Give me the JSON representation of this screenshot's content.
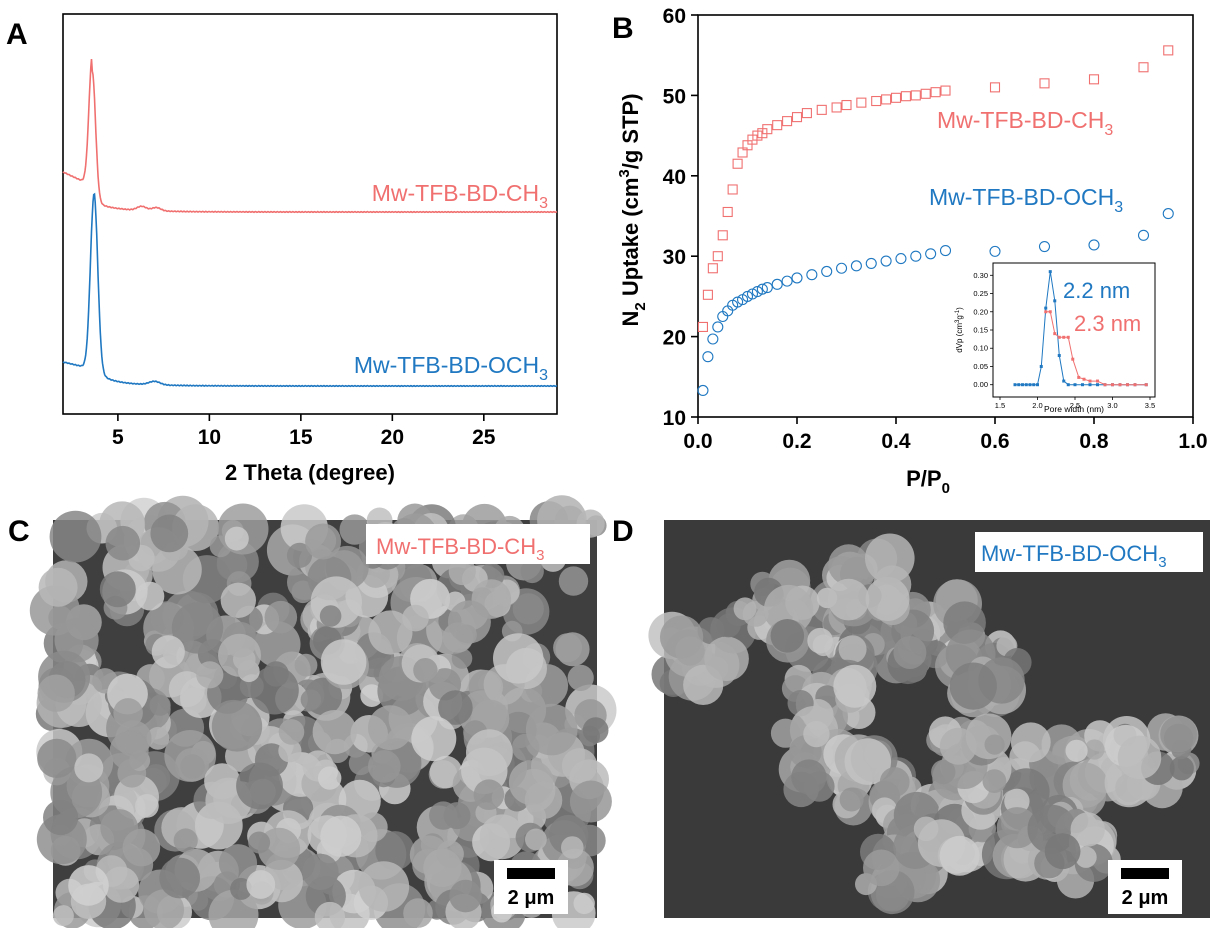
{
  "panels": {
    "A": "A",
    "B": "B",
    "C": "C",
    "D": "D"
  },
  "colors": {
    "ch3": "#f07070",
    "och3": "#1f78c1"
  },
  "sem": {
    "c_label": "Mw-TFB-BD-CH",
    "c_label_sub": "3",
    "d_label": "Mw-TFB-BD-OCH",
    "d_label_sub": "3",
    "scalebar": "2 μm"
  },
  "chart_data": [
    {
      "id": "xrd",
      "type": "line",
      "xlabel": "2 Theta (degree)",
      "xlim": [
        2,
        29
      ],
      "xticks": [
        5,
        10,
        15,
        20,
        25
      ],
      "yticks_shown": false,
      "series": [
        {
          "name": "Mw-TFB-BD-CH3",
          "label_main": "Mw-TFB-BD-CH",
          "label_sub": "3",
          "color": "#f07070",
          "peaks": [
            {
              "x": 3.6,
              "height": 0.95,
              "width": 0.18
            },
            {
              "x": 6.3,
              "height": 0.03,
              "width": 0.25
            },
            {
              "x": 7.1,
              "height": 0.025,
              "width": 0.25
            }
          ]
        },
        {
          "name": "Mw-TFB-BD-OCH3",
          "label_main": "Mw-TFB-BD-OCH",
          "label_sub": "3",
          "color": "#1f78c1",
          "peaks": [
            {
              "x": 3.7,
              "height": 1.0,
              "width": 0.2
            },
            {
              "x": 7.0,
              "height": 0.02,
              "width": 0.3
            }
          ]
        }
      ]
    },
    {
      "id": "bet",
      "type": "scatter",
      "xlabel_main": "P/P",
      "xlabel_sub": "0",
      "ylabel_n": "N",
      "ylabel_n_sub": "2",
      "ylabel_main": " Uptake (cm",
      "ylabel_sup": "3",
      "ylabel_end": "/g STP)",
      "xlim": [
        0,
        1.0
      ],
      "ylim": [
        10,
        60
      ],
      "xticks": [
        0.0,
        0.2,
        0.4,
        0.6,
        0.8,
        1.0
      ],
      "yticks": [
        10,
        20,
        30,
        40,
        50,
        60
      ],
      "series": [
        {
          "name": "Mw-TFB-BD-CH3",
          "label_main": "Mw-TFB-BD-CH",
          "label_sub": "3",
          "marker": "square",
          "color": "#f07070",
          "x": [
            0.01,
            0.02,
            0.03,
            0.04,
            0.05,
            0.06,
            0.07,
            0.08,
            0.09,
            0.1,
            0.11,
            0.12,
            0.13,
            0.14,
            0.16,
            0.18,
            0.2,
            0.22,
            0.25,
            0.28,
            0.3,
            0.33,
            0.36,
            0.38,
            0.4,
            0.42,
            0.44,
            0.46,
            0.48,
            0.5,
            0.6,
            0.7,
            0.8,
            0.9,
            0.95
          ],
          "y": [
            21.2,
            25.2,
            28.5,
            30,
            32.6,
            35.5,
            38.3,
            41.5,
            42.9,
            43.8,
            44.5,
            45,
            45.3,
            45.8,
            46.3,
            46.8,
            47.3,
            47.8,
            48.2,
            48.5,
            48.8,
            49.1,
            49.3,
            49.5,
            49.7,
            49.9,
            50,
            50.2,
            50.4,
            50.6,
            51,
            51.5,
            52,
            53.5,
            55.6
          ]
        },
        {
          "name": "Mw-TFB-BD-OCH3",
          "label_main": "Mw-TFB-BD-OCH",
          "label_sub": "3",
          "marker": "circle",
          "color": "#1f78c1",
          "x": [
            0.01,
            0.02,
            0.03,
            0.04,
            0.05,
            0.06,
            0.07,
            0.08,
            0.09,
            0.1,
            0.11,
            0.12,
            0.13,
            0.14,
            0.16,
            0.18,
            0.2,
            0.23,
            0.26,
            0.29,
            0.32,
            0.35,
            0.38,
            0.41,
            0.44,
            0.47,
            0.5,
            0.6,
            0.7,
            0.8,
            0.9,
            0.95
          ],
          "y": [
            13.3,
            17.5,
            19.7,
            21.2,
            22.5,
            23.2,
            23.9,
            24.3,
            24.6,
            25,
            25.3,
            25.6,
            25.9,
            26.1,
            26.5,
            26.9,
            27.3,
            27.7,
            28.1,
            28.5,
            28.8,
            29.1,
            29.4,
            29.7,
            30,
            30.3,
            30.7,
            30.6,
            31.2,
            31.4,
            32.6,
            35.3
          ]
        }
      ]
    },
    {
      "id": "pore_inset",
      "type": "line",
      "xlabel": "Pore width (nm)",
      "ylabel_main": "dVp (cm",
      "ylabel_sup1": "3",
      "ylabel_mid": "g",
      "ylabel_sup2": "-1",
      "ylabel_end": ")",
      "xlim": [
        1.5,
        3.5
      ],
      "ylim": [
        -0.02,
        0.32
      ],
      "xticks": [
        1.5,
        2.0,
        2.5,
        3.0,
        3.5
      ],
      "yticks": [
        0.0,
        0.05,
        0.1,
        0.15,
        0.2,
        0.25,
        0.3
      ],
      "series": [
        {
          "name": "2.2 nm",
          "color": "#1f78c1",
          "x": [
            1.7,
            1.75,
            1.8,
            1.85,
            1.9,
            1.95,
            2.0,
            2.05,
            2.11,
            2.17,
            2.23,
            2.29,
            2.35,
            2.41,
            2.5,
            2.6,
            2.7,
            2.8,
            2.9,
            3.0,
            3.1,
            3.2,
            3.3,
            3.45
          ],
          "y": [
            0,
            0,
            0,
            0,
            0,
            0,
            0,
            0.05,
            0.21,
            0.31,
            0.23,
            0.08,
            0.01,
            0,
            0,
            0,
            0,
            0,
            0,
            0,
            0,
            0,
            0,
            0
          ]
        },
        {
          "name": "2.3 nm",
          "color": "#f07070",
          "x": [
            2.11,
            2.17,
            2.23,
            2.29,
            2.35,
            2.41,
            2.47,
            2.55,
            2.62,
            2.7,
            2.8,
            2.9,
            3.0,
            3.1,
            3.2,
            3.3,
            3.45
          ],
          "y": [
            0.2,
            0.2,
            0.14,
            0.13,
            0.13,
            0.13,
            0.07,
            0.02,
            0.015,
            0.01,
            0.01,
            0,
            0,
            0,
            0,
            0,
            0
          ]
        }
      ]
    }
  ]
}
